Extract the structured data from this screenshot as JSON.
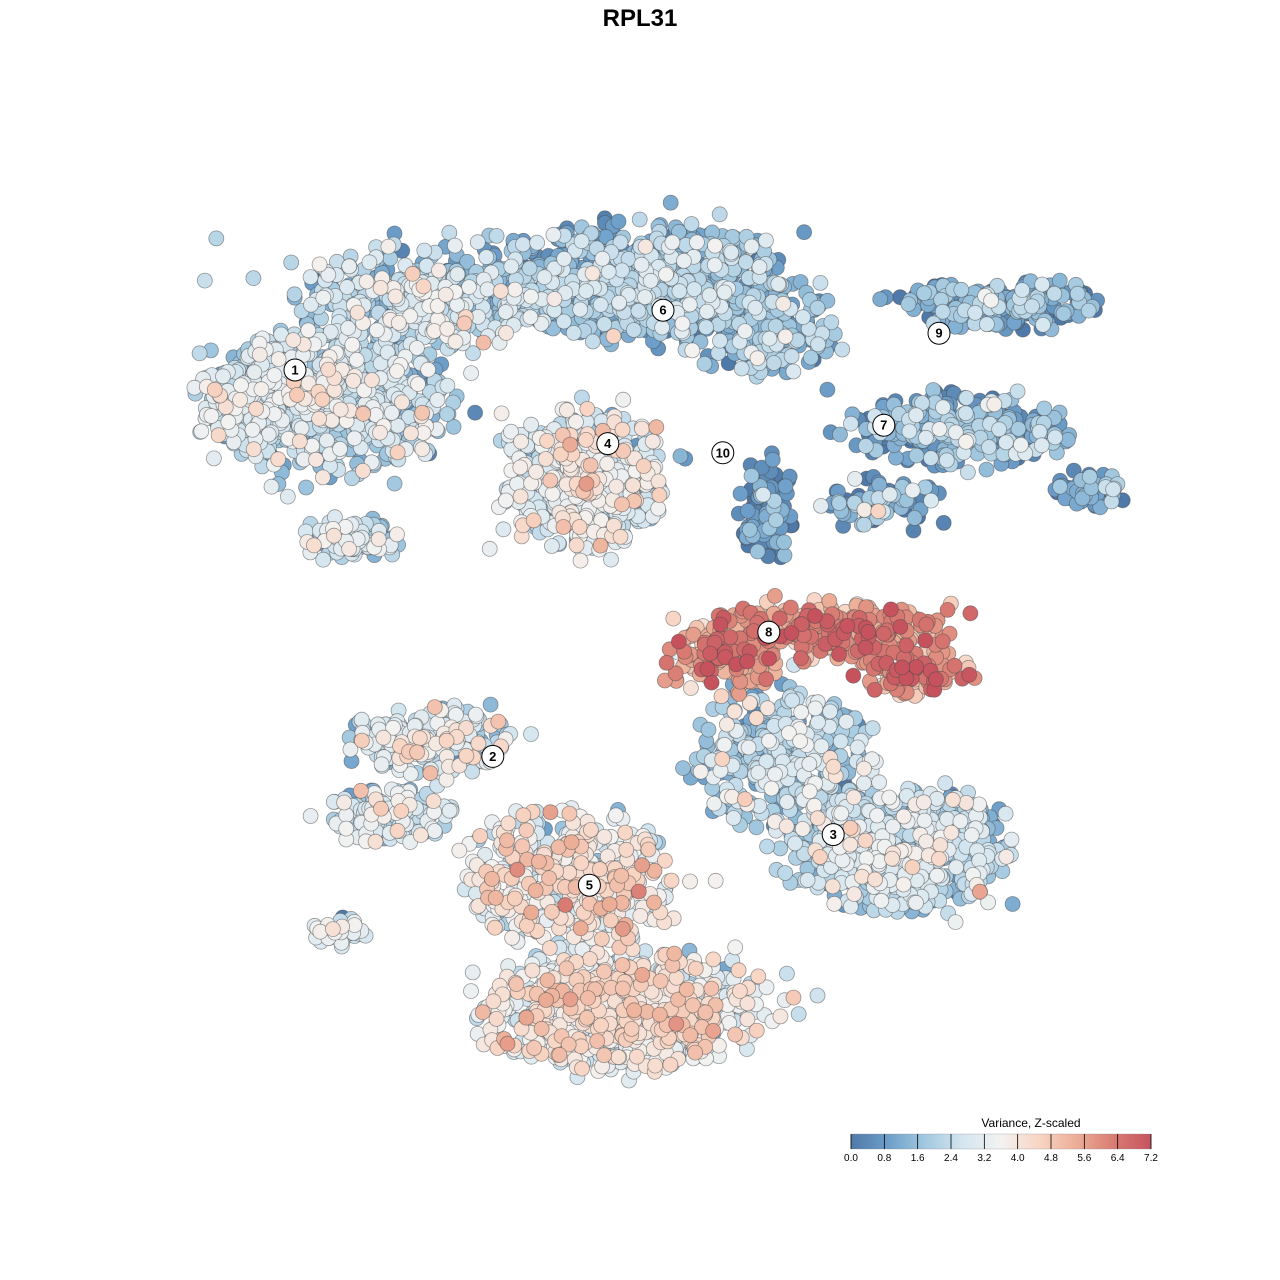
{
  "chart_data": {
    "type": "scatter",
    "title": "RPL31",
    "xlabel": "",
    "ylabel": "",
    "grid": false,
    "legend_placement": "bottom-right",
    "color_scale": {
      "title": "Variance, Z-scaled",
      "min": 0.0,
      "max": 7.2,
      "ticks": [
        "0.0",
        "0.8",
        "1.6",
        "2.4",
        "3.2",
        "4.0",
        "4.8",
        "5.6",
        "6.4",
        "7.2"
      ],
      "colors": [
        "#4f79a8",
        "#6d9fca",
        "#a3c9e0",
        "#d5e6f0",
        "#f3f2f1",
        "#f8d5c4",
        "#ecae97",
        "#d97c73",
        "#c6525e"
      ]
    },
    "clusters": [
      {
        "label": "1",
        "x": -7.5,
        "y": 5.5,
        "value": 2.3
      },
      {
        "label": "2",
        "x": -3.2,
        "y": -2.9,
        "value": 2.6
      },
      {
        "label": "3",
        "x": 4.2,
        "y": -4.6,
        "value": 2.2
      },
      {
        "label": "4",
        "x": -0.7,
        "y": 3.9,
        "value": 2.9
      },
      {
        "label": "5",
        "x": -1.1,
        "y": -5.7,
        "value": 3.4
      },
      {
        "label": "6",
        "x": 0.5,
        "y": 6.8,
        "value": 1.5
      },
      {
        "label": "7",
        "x": 5.3,
        "y": 4.3,
        "value": 1.1
      },
      {
        "label": "8",
        "x": 2.8,
        "y": -0.2,
        "value": 5.6
      },
      {
        "label": "9",
        "x": 6.5,
        "y": 6.3,
        "value": 1.0
      },
      {
        "label": "10",
        "x": 1.8,
        "y": 3.7,
        "value": 0.3
      }
    ]
  }
}
